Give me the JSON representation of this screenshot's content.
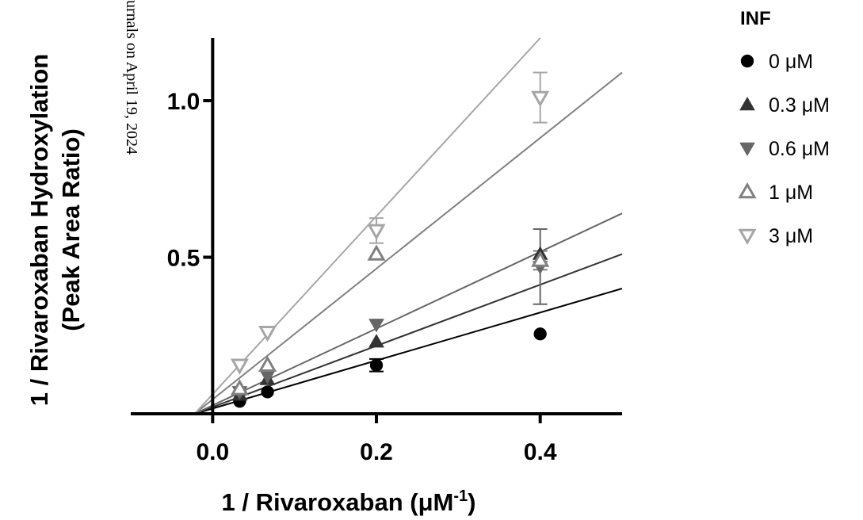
{
  "chart_data": {
    "type": "scatter",
    "title": "",
    "xlabel": "1 / Rivaroxaban (μM",
    "xlabel_superscript": "-1",
    "xlabel_suffix": ")",
    "ylabel_line1": "1 / Rivaroxaban Hydroxylation",
    "ylabel_line2": "(Peak Area Ratio)",
    "xlim": [
      -0.1,
      0.5
    ],
    "ylim": [
      0,
      1.2
    ],
    "x_ticks": [
      0.0,
      0.2,
      0.4
    ],
    "x_tick_labels": [
      "0.0",
      "0.2",
      "0.4"
    ],
    "y_ticks": [
      0.5,
      1.0
    ],
    "y_tick_labels": [
      "0.5",
      "1.0"
    ],
    "legend_title": "INF",
    "legend_position": "top-right",
    "watermark": "urnals on April 19, 2024",
    "series": [
      {
        "name": "0 μM",
        "marker": "circle",
        "filled": true,
        "color": "#000000",
        "x": [
          0.033,
          0.067,
          0.2,
          0.4
        ],
        "y": [
          0.04,
          0.07,
          0.155,
          0.255
        ],
        "yerr": [
          0,
          0,
          0.02,
          0
        ],
        "fit": {
          "x0": -0.022,
          "x1": 0.5,
          "y1": 0.4
        }
      },
      {
        "name": "0.3 μM",
        "marker": "triangle-up",
        "filled": true,
        "color": "#333333",
        "x": [
          0.033,
          0.067,
          0.2,
          0.4
        ],
        "y": [
          0.06,
          0.11,
          0.23,
          0.51
        ],
        "yerr": [
          0,
          0,
          0,
          0
        ],
        "fit": {
          "x0": -0.022,
          "x1": 0.5,
          "y1": 0.51
        }
      },
      {
        "name": "0.6 μM",
        "marker": "triangle-down",
        "filled": true,
        "color": "#666666",
        "x": [
          0.033,
          0.067,
          0.2,
          0.4
        ],
        "y": [
          0.07,
          0.12,
          0.285,
          0.47
        ],
        "yerr": [
          0,
          0,
          0,
          0.12
        ],
        "fit": {
          "x0": -0.022,
          "x1": 0.5,
          "y1": 0.64
        }
      },
      {
        "name": "1 μM",
        "marker": "triangle-up",
        "filled": false,
        "color": "#808080",
        "x": [
          0.033,
          0.067,
          0.2,
          0.4
        ],
        "y": [
          0.08,
          0.155,
          0.51,
          0.49
        ],
        "yerr": [
          0,
          0,
          0,
          0.03
        ],
        "fit": {
          "x0": -0.022,
          "x1": 0.5,
          "y1": 1.09
        }
      },
      {
        "name": "3 μM",
        "marker": "triangle-down",
        "filled": false,
        "color": "#a6a6a6",
        "x": [
          0.033,
          0.067,
          0.2,
          0.4
        ],
        "y": [
          0.155,
          0.26,
          0.585,
          1.01
        ],
        "yerr": [
          0,
          0,
          0.04,
          0.08
        ],
        "fit": {
          "x0": -0.022,
          "x1": 0.4,
          "y1": 1.2
        }
      }
    ]
  }
}
